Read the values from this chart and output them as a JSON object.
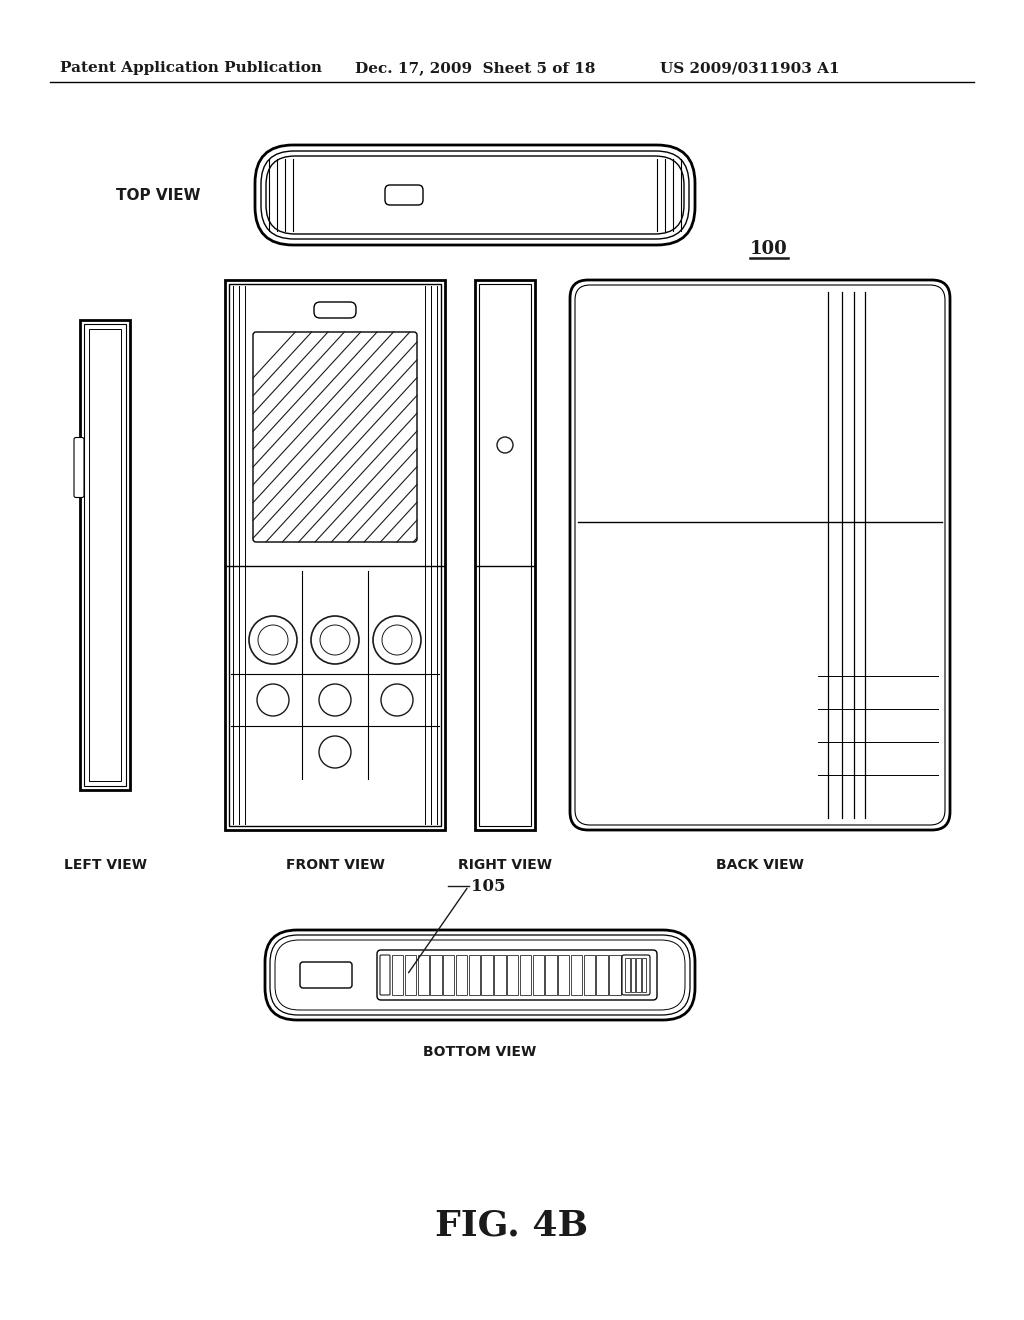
{
  "bg_color": "#ffffff",
  "line_color": "#1a1a1a",
  "header_left": "Patent Application Publication",
  "header_mid": "Dec. 17, 2009  Sheet 5 of 18",
  "header_right": "US 2009/0311903 A1",
  "fig_label": "FIG. 4B",
  "ref_100": "100",
  "ref_105": "105",
  "label_top_view": "TOP VIEW",
  "label_left_view": "LEFT VIEW",
  "label_front_view": "FRONT VIEW",
  "label_right_view": "RIGHT VIEW",
  "label_back_view": "BACK VIEW",
  "label_bottom_view": "BOTTOM VIEW"
}
